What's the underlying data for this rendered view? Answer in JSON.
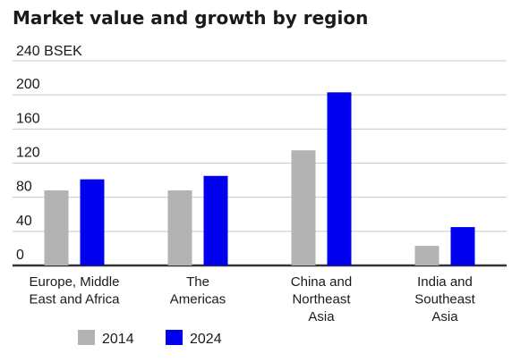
{
  "chart_data": {
    "type": "bar",
    "title": "Market value and growth by region",
    "y_unit_label": "240 BSEK",
    "categories": [
      [
        "Europe, Middle",
        "East and Africa"
      ],
      [
        "The",
        "Americas"
      ],
      [
        "China and",
        "Northeast",
        "Asia"
      ],
      [
        "India and",
        "Southeast",
        "Asia"
      ]
    ],
    "series": [
      {
        "name": "2014",
        "color": "#b3b3b3",
        "values": [
          88,
          88,
          135,
          23
        ]
      },
      {
        "name": "2024",
        "color": "#0000ee",
        "values": [
          101,
          105,
          203,
          45
        ]
      }
    ],
    "ylim": [
      0,
      240
    ],
    "yticks": [
      "0",
      "40",
      "80",
      "120",
      "160",
      "200"
    ],
    "grid": true,
    "legend_position": "bottom-left",
    "axis_color": "#333333",
    "grid_color": "#c8c8c8"
  }
}
